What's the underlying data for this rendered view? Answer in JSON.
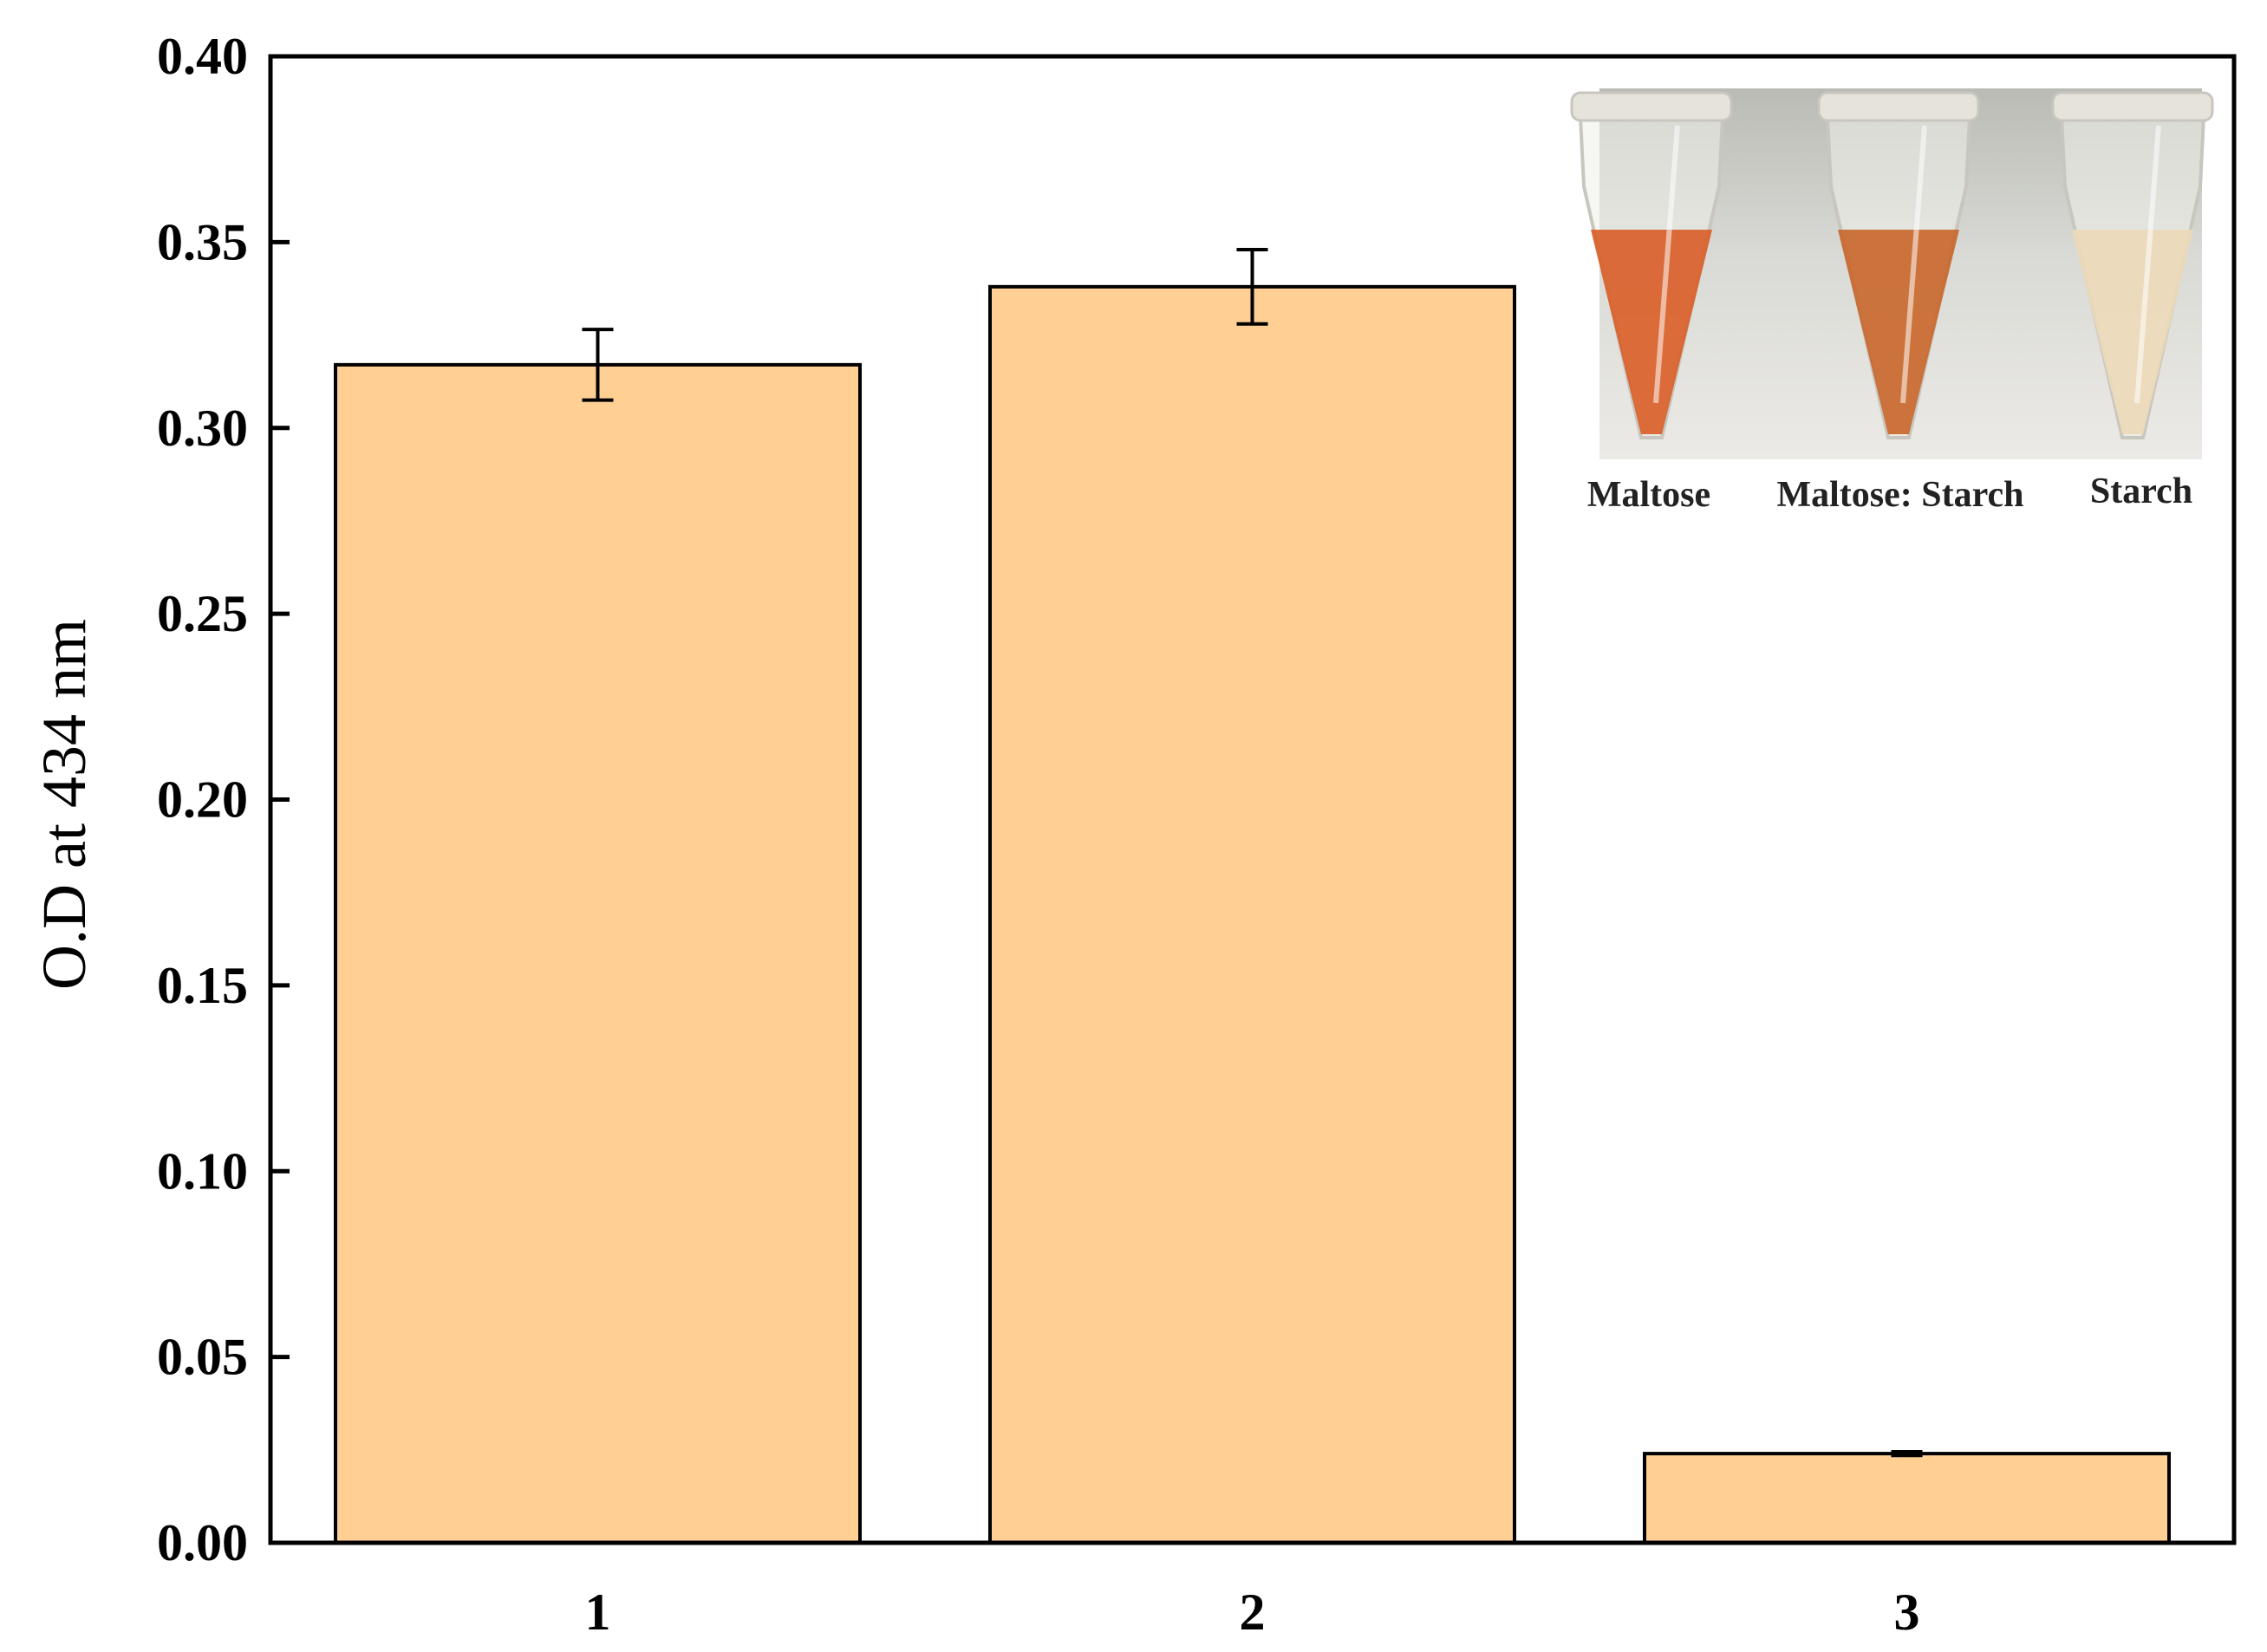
{
  "chart_data": {
    "type": "bar",
    "categories": [
      "1",
      "2",
      "3"
    ],
    "values": [
      0.317,
      0.338,
      0.024
    ],
    "error": [
      0.0095,
      0.01,
      0.0005
    ],
    "ylabel": "O.D at 434 nm",
    "xlabel": "",
    "ylim": [
      0,
      0.4
    ],
    "yticks": [
      "0.00",
      "0.05",
      "0.10",
      "0.15",
      "0.20",
      "0.25",
      "0.30",
      "0.35",
      "0.40"
    ],
    "bar_color": "#FFCF94",
    "grid": false,
    "inset": {
      "labels": [
        "Maltose",
        "Maltose: Starch",
        "Starch"
      ],
      "tube_colors": [
        "#D9602A",
        "#C9682F",
        "#EBD9B8"
      ]
    }
  }
}
